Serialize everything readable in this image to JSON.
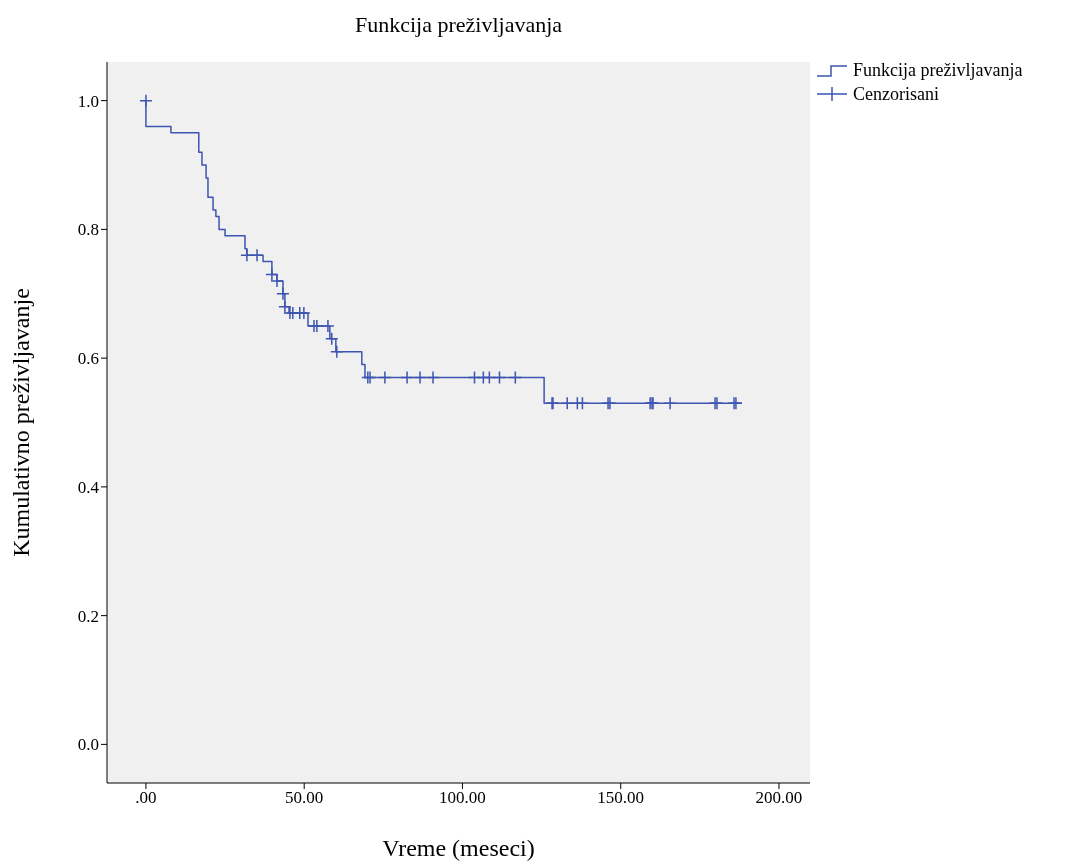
{
  "chart_data": {
    "type": "line",
    "title": "Funkcija preživljavanja",
    "xlabel": "Vreme (meseci)",
    "ylabel": "Kumulativno preživljavanje",
    "xlim": [
      -12.3,
      209.8
    ],
    "ylim": [
      -0.06,
      1.06
    ],
    "xticks": [
      {
        "value": 0,
        "label": ".00"
      },
      {
        "value": 50,
        "label": "50.00"
      },
      {
        "value": 100,
        "label": "100.00"
      },
      {
        "value": 150,
        "label": "150.00"
      },
      {
        "value": 200,
        "label": "200.00"
      }
    ],
    "yticks": [
      {
        "value": 0,
        "label": "0.0"
      },
      {
        "value": 0.2,
        "label": "0.2"
      },
      {
        "value": 0.4,
        "label": "0.4"
      },
      {
        "value": 0.6,
        "label": "0.6"
      },
      {
        "value": 0.8,
        "label": "0.8"
      },
      {
        "value": 1,
        "label": "1.0"
      }
    ],
    "grid": false,
    "legend": "top right",
    "series": [
      {
        "name": "Funkcija preživljavanja",
        "color": "#3d55b0",
        "marker": "none",
        "x": [
          0,
          0,
          7.9,
          7.9,
          16.7,
          16.7,
          17.7,
          17.7,
          19.0,
          19.0,
          19.6,
          19.6,
          21.2,
          21.2,
          22.1,
          22.1,
          23.1,
          23.1,
          25.0,
          25.0,
          31.3,
          31.3,
          31.9,
          31.9,
          37.0,
          37.0,
          39.8,
          39.8,
          41.4,
          41.4,
          43.3,
          43.3,
          43.9,
          43.9,
          45.2,
          45.2,
          51.2,
          51.2,
          58.1,
          58.1,
          60.0,
          60.0,
          68.2,
          68.2,
          69.2,
          69.2,
          125.8,
          125.8,
          188.3
        ],
        "values": [
          1.0,
          0.96,
          0.96,
          0.95,
          0.95,
          0.92,
          0.92,
          0.9,
          0.9,
          0.88,
          0.88,
          0.85,
          0.85,
          0.83,
          0.83,
          0.82,
          0.82,
          0.8,
          0.8,
          0.79,
          0.79,
          0.77,
          0.77,
          0.76,
          0.76,
          0.75,
          0.75,
          0.73,
          0.73,
          0.72,
          0.72,
          0.7,
          0.7,
          0.68,
          0.68,
          0.67,
          0.67,
          0.65,
          0.65,
          0.63,
          0.63,
          0.61,
          0.61,
          0.59,
          0.59,
          0.57,
          0.57,
          0.53,
          0.53
        ]
      },
      {
        "name": "Cenzorisani",
        "type": "scatter",
        "color": "#3d55b0",
        "marker": "cross",
        "x": [
          0,
          31.9,
          35.1,
          39.8,
          41.4,
          43.3,
          43.9,
          45.5,
          46.4,
          48.6,
          49.9,
          53.1,
          54.0,
          57.5,
          58.7,
          60.3,
          70.1,
          70.8,
          75.5,
          82.5,
          86.6,
          90.7,
          103.8,
          106.6,
          108.5,
          111.7,
          116.7,
          128.3,
          128.6,
          133.1,
          136.3,
          137.9,
          146.0,
          146.6,
          159.3,
          159.9,
          160.2,
          165.6,
          179.8,
          180.4,
          185.8,
          186.4
        ],
        "values": [
          1.0,
          0.76,
          0.76,
          0.73,
          0.72,
          0.7,
          0.68,
          0.67,
          0.67,
          0.67,
          0.67,
          0.65,
          0.65,
          0.65,
          0.63,
          0.61,
          0.57,
          0.57,
          0.57,
          0.57,
          0.57,
          0.57,
          0.57,
          0.57,
          0.57,
          0.57,
          0.57,
          0.53,
          0.53,
          0.53,
          0.53,
          0.53,
          0.53,
          0.53,
          0.53,
          0.53,
          0.53,
          0.53,
          0.53,
          0.53,
          0.53,
          0.53
        ]
      }
    ]
  }
}
